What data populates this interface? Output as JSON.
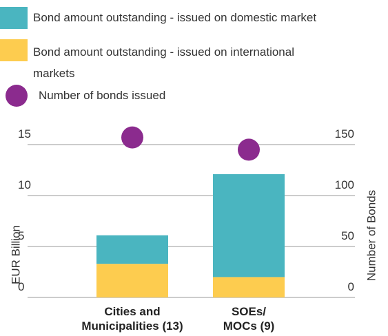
{
  "chart_data": {
    "type": "bar",
    "categories": [
      "Cities and Municipalities (13)",
      "SOEs/ MOCs (9)"
    ],
    "series": [
      {
        "name": "Bond amount outstanding - issued on domestic market",
        "color": "#4ab5c0",
        "values": [
          2.8,
          10.1
        ]
      },
      {
        "name": "Bond amount outstanding - issued on international markets",
        "color": "#fdcc4f",
        "values": [
          3.3,
          2.0
        ]
      },
      {
        "name": "Number of bonds issued",
        "color": "#8b2b8e",
        "values": [
          157,
          145
        ],
        "axis": "y2",
        "type": "scatter"
      }
    ],
    "ylabel": "EUR Billion",
    "y2label": "Number of Bonds",
    "ylim": [
      0,
      15
    ],
    "yticks": [
      0,
      5,
      10,
      15
    ],
    "y2lim": [
      0,
      150
    ],
    "y2ticks": [
      0,
      50,
      100,
      150
    ],
    "grid": true
  }
}
